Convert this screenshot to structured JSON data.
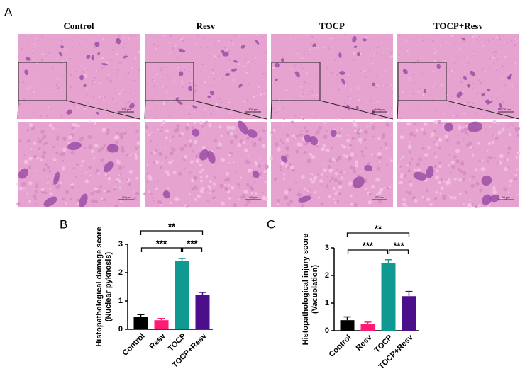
{
  "panel_labels": [
    "A",
    "B",
    "C"
  ],
  "histology": {
    "columns": [
      "Control",
      "Resv",
      "TOCP",
      "TOCP+Resv"
    ],
    "scale_bars": [
      "100 μm",
      "50 μm"
    ]
  },
  "chart_data": [
    {
      "type": "bar",
      "y_label": [
        "Histopathological damage score",
        "(Nuclear pyknosis)"
      ],
      "categories": [
        "Control",
        "Resv",
        "TOCP",
        "TOCP+Resv"
      ],
      "values": [
        0.45,
        0.32,
        2.4,
        1.22
      ],
      "errors": [
        0.07,
        0.06,
        0.1,
        0.08
      ],
      "colors": [
        "#000000",
        "#ff1a75",
        "#0f9990",
        "#4b0f8c"
      ],
      "ylim": [
        0,
        3
      ],
      "yticks": [
        0,
        1,
        2,
        3
      ],
      "annotations": [
        {
          "text": "**",
          "between": [
            "Control",
            "TOCP+Resv"
          ]
        },
        {
          "text": "***",
          "between": [
            "Control",
            "TOCP"
          ]
        },
        {
          "text": "***",
          "between": [
            "TOCP",
            "TOCP+Resv"
          ]
        }
      ]
    },
    {
      "type": "bar",
      "y_label": [
        "Histopathological injury score",
        "(Vacuolation)"
      ],
      "categories": [
        "Control",
        "Resv",
        "TOCP",
        "TOCP+Resv"
      ],
      "values": [
        0.38,
        0.25,
        2.45,
        1.25
      ],
      "errors": [
        0.12,
        0.06,
        0.12,
        0.17
      ],
      "colors": [
        "#000000",
        "#ff1a75",
        "#0f9990",
        "#4b0f8c"
      ],
      "ylim": [
        0,
        3
      ],
      "yticks": [
        0,
        1,
        2,
        3
      ],
      "annotations": [
        {
          "text": "**",
          "between": [
            "Control",
            "TOCP+Resv"
          ]
        },
        {
          "text": "***",
          "between": [
            "Control",
            "TOCP"
          ]
        },
        {
          "text": "***",
          "between": [
            "TOCP",
            "TOCP+Resv"
          ]
        }
      ]
    }
  ]
}
